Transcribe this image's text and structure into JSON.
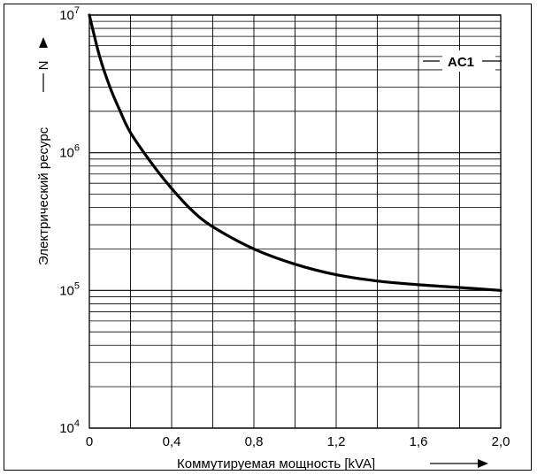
{
  "chart_data": {
    "type": "line",
    "xlabel": "Коммутируемая мощность [kVA]",
    "ylabel": "Электрический ресурс",
    "ysymbol": "N",
    "xlim": [
      0,
      2.0
    ],
    "ylim": [
      10000,
      10000000
    ],
    "yscale": "log",
    "x_ticks": [
      "0",
      "0,4",
      "0,8",
      "1,2",
      "1,6",
      "2,0"
    ],
    "y_ticks": [
      {
        "base": "10",
        "exp": "4"
      },
      {
        "base": "10",
        "exp": "5"
      },
      {
        "base": "10",
        "exp": "6"
      },
      {
        "base": "10",
        "exp": "7"
      }
    ],
    "legend": "AC1",
    "series": [
      {
        "name": "AC1",
        "x": [
          0,
          0.05,
          0.1,
          0.15,
          0.2,
          0.3,
          0.4,
          0.5,
          0.6,
          0.8,
          1.0,
          1.2,
          1.4,
          1.6,
          1.8,
          2.0
        ],
        "y": [
          10000000,
          5000000,
          3000000,
          2000000,
          1400000,
          850000,
          550000,
          380000,
          290000,
          200000,
          155000,
          130000,
          117000,
          110000,
          105000,
          100000
        ]
      }
    ],
    "grid": true,
    "color": "#000000"
  }
}
